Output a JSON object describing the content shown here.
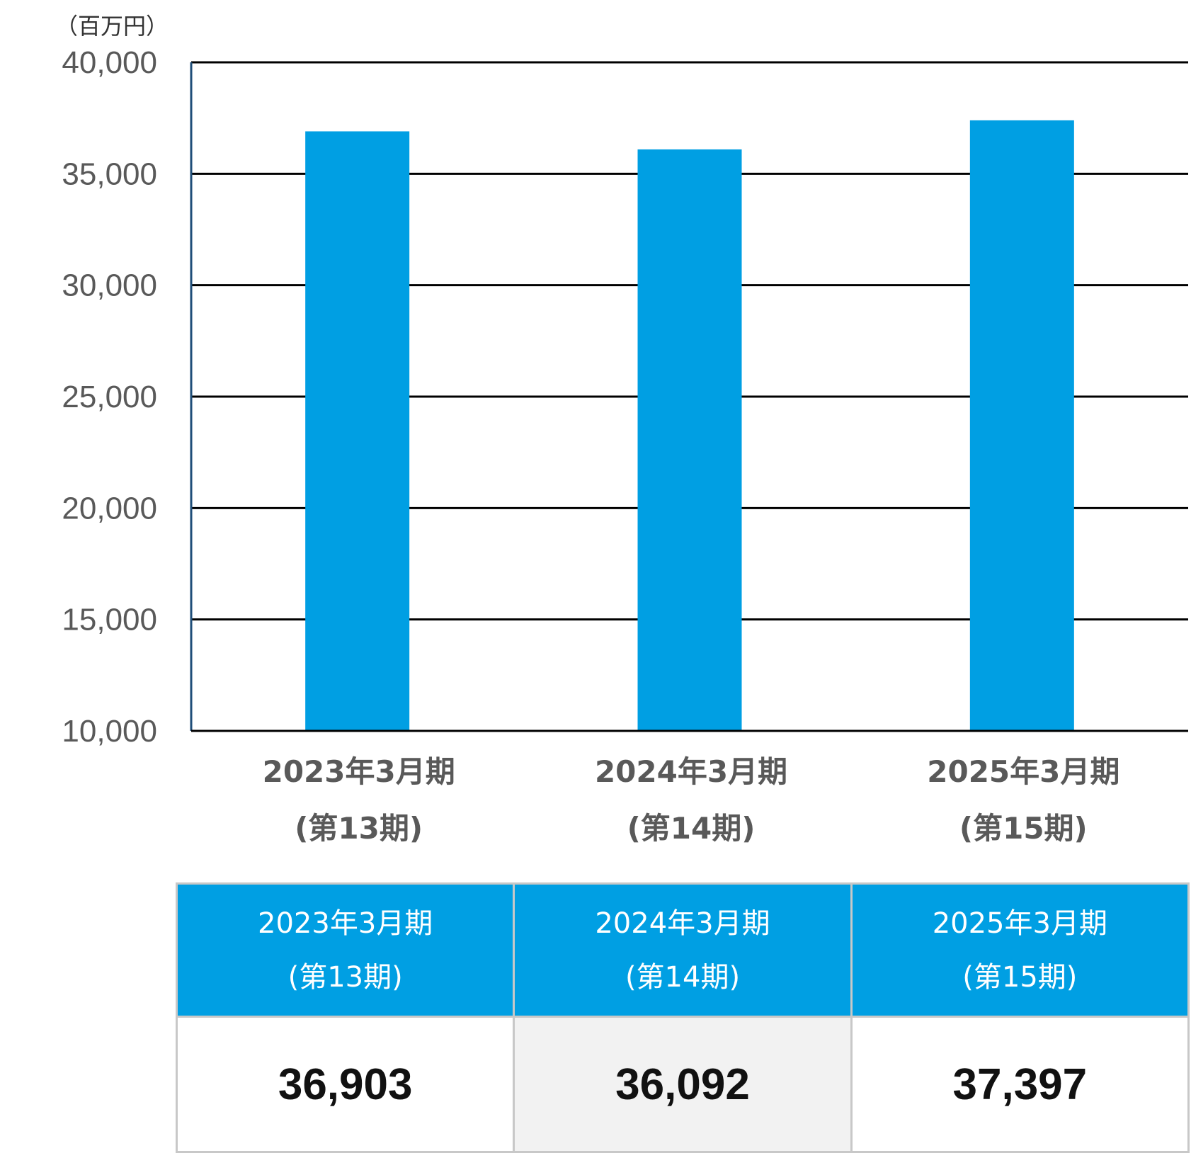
{
  "chart_data": {
    "type": "bar",
    "unit_label": "（百万円）",
    "categories": [
      [
        "2023年3月期",
        "(第13期)"
      ],
      [
        "2024年3月期",
        "(第14期)"
      ],
      [
        "2025年3月期",
        "(第15期)"
      ]
    ],
    "values": [
      36903,
      36092,
      37397
    ],
    "ylim": [
      10000,
      40000
    ],
    "yticks": [
      10000,
      15000,
      20000,
      25000,
      30000,
      35000,
      40000
    ],
    "ytick_labels": [
      "10,000",
      "15,000",
      "20,000",
      "25,000",
      "30,000",
      "35,000",
      "40,000"
    ],
    "grid": true,
    "bar_color": "#009fe3"
  },
  "table": {
    "headers": [
      {
        "line1": "2023年3月期",
        "line2": "(第13期)"
      },
      {
        "line1": "2024年3月期",
        "line2": "(第14期)"
      },
      {
        "line1": "2025年3月期",
        "line2": "(第15期)"
      }
    ],
    "values": [
      "36,903",
      "36,092",
      "37,397"
    ]
  }
}
